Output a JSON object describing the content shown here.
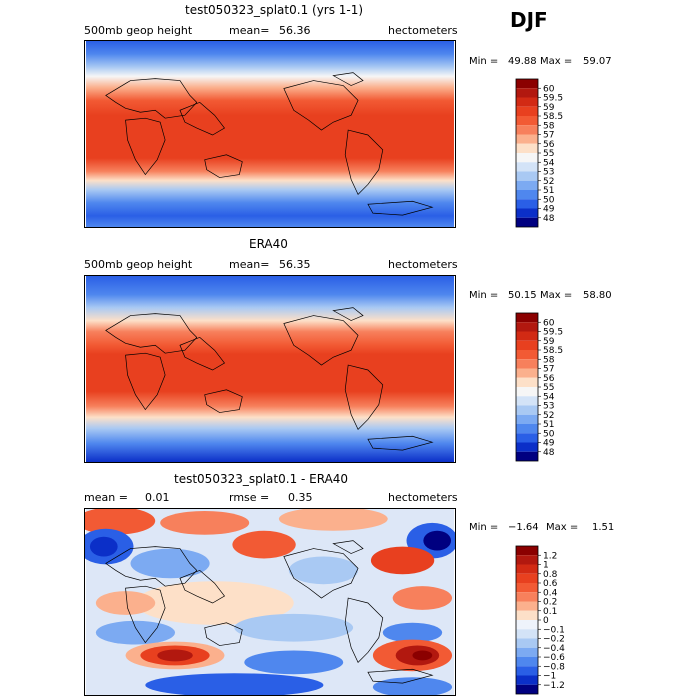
{
  "season": "DJF",
  "panels": [
    {
      "title": "test050323_splat0.1 (yrs 1-1)",
      "variable": "500mb geop height",
      "stat_label": "mean=",
      "stat_value": "56.36",
      "stat2_label": "",
      "stat2_value": "",
      "units": "hectometers",
      "min_label": "Min =",
      "min_value": "49.88",
      "max_label": "Max =",
      "max_value": "59.07",
      "colorbar_labels": [
        "60",
        "59.5",
        "59",
        "58.5",
        "58",
        "57",
        "56",
        "55",
        "54",
        "53",
        "52",
        "51",
        "50",
        "49",
        "48"
      ],
      "colorbar_colors": [
        "#8b0000",
        "#b2180f",
        "#d22a14",
        "#e8401f",
        "#f25a34",
        "#f7805c",
        "#fbb08d",
        "#fde0c8",
        "#f6f6f6",
        "#d3e3f7",
        "#a9c9f3",
        "#7caaf2",
        "#4f87ee",
        "#2a5fe6",
        "#0b2fc8",
        "#000080"
      ]
    },
    {
      "title": "ERA40",
      "variable": "500mb geop height",
      "stat_label": "mean=",
      "stat_value": "56.35",
      "stat2_label": "",
      "stat2_value": "",
      "units": "hectometers",
      "min_label": "Min =",
      "min_value": "50.15",
      "max_label": "Max =",
      "max_value": "58.80",
      "colorbar_labels": [
        "60",
        "59.5",
        "59",
        "58.5",
        "58",
        "57",
        "56",
        "55",
        "54",
        "53",
        "52",
        "51",
        "50",
        "49",
        "48"
      ],
      "colorbar_colors": [
        "#8b0000",
        "#b2180f",
        "#d22a14",
        "#e8401f",
        "#f25a34",
        "#f7805c",
        "#fbb08d",
        "#fde0c8",
        "#f6f6f6",
        "#d3e3f7",
        "#a9c9f3",
        "#7caaf2",
        "#4f87ee",
        "#2a5fe6",
        "#0b2fc8",
        "#000080"
      ]
    },
    {
      "title": "test050323_splat0.1 - ERA40",
      "variable": "",
      "stat_label": "mean =",
      "stat_value": "0.01",
      "stat2_label": "rmse =",
      "stat2_value": "0.35",
      "units": "hectometers",
      "min_label": "Min =",
      "min_value": "−1.64",
      "max_label": "Max =",
      "max_value": "1.51",
      "colorbar_labels": [
        "1.2",
        "1",
        "0.8",
        "0.6",
        "0.4",
        "0.2",
        "0.1",
        "0",
        "−0.1",
        "−0.2",
        "−0.4",
        "−0.6",
        "−0.8",
        "−1",
        "−1.2"
      ],
      "colorbar_colors": [
        "#8b0000",
        "#b2180f",
        "#d22a14",
        "#e8401f",
        "#f25a34",
        "#f7805c",
        "#fbb08d",
        "#fde0c8",
        "#eef3fb",
        "#d3e3f7",
        "#a9c9f3",
        "#7caaf2",
        "#4f87ee",
        "#2a5fe6",
        "#0b2fc8",
        "#000080"
      ]
    }
  ]
}
